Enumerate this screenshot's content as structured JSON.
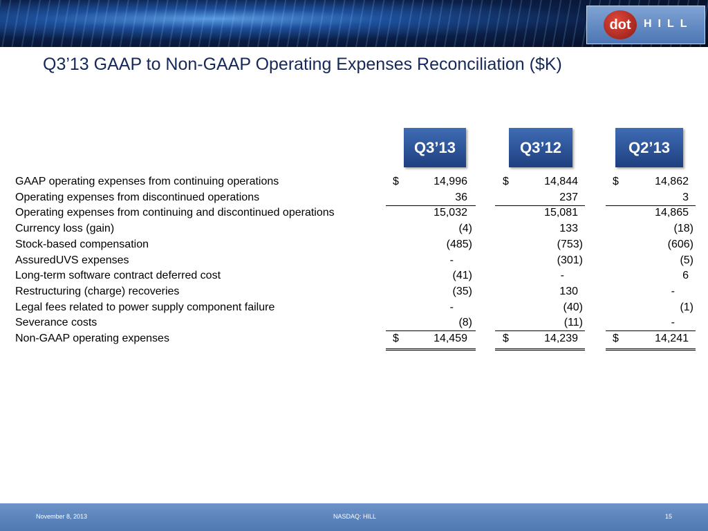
{
  "header": {
    "logo": {
      "left": "dot",
      "right": "HILL"
    }
  },
  "title": "Q3’13 GAAP to Non-GAAP Operating Expenses Reconciliation ($K)",
  "table": {
    "columns": [
      "Q3’13",
      "Q3’12",
      "Q2’13"
    ],
    "rows": [
      {
        "label": "GAAP operating expenses from continuing operations",
        "currency": "$",
        "values": [
          "14,996",
          "14,844",
          "14,862"
        ]
      },
      {
        "label": "Operating expenses from discontinued operations",
        "values": [
          "36",
          "237",
          "3"
        ],
        "rule": "single"
      },
      {
        "label": "Operating expenses from continuing and discontinued operations",
        "values": [
          "15,032",
          "15,081",
          "14,865"
        ]
      },
      {
        "label": "Currency loss (gain)",
        "values": [
          "(4)",
          "133",
          "(18)"
        ]
      },
      {
        "label": "Stock-based compensation",
        "values": [
          "(485)",
          "(753)",
          "(606)"
        ]
      },
      {
        "label": "AssuredUVS expenses",
        "values": [
          "-",
          "(301)",
          "(5)"
        ]
      },
      {
        "label": "Long-term software contract deferred cost",
        "values": [
          "(41)",
          "-",
          "6"
        ]
      },
      {
        "label": "Restructuring (charge) recoveries",
        "values": [
          "(35)",
          "130",
          "-"
        ]
      },
      {
        "label": "Legal fees related to power supply component failure",
        "values": [
          "-",
          "(40)",
          "(1)"
        ]
      },
      {
        "label": "Severance costs",
        "values": [
          "(8)",
          "(11)",
          "-"
        ],
        "rule": "single"
      },
      {
        "label": "Non-GAAP operating expenses",
        "currency": "$",
        "values": [
          "14,459",
          "14,239",
          "14,241"
        ],
        "rule": "double"
      }
    ]
  },
  "footer": {
    "date": "November 8,  2013",
    "ticker": "NASDAQ: HILL",
    "page": "15"
  }
}
